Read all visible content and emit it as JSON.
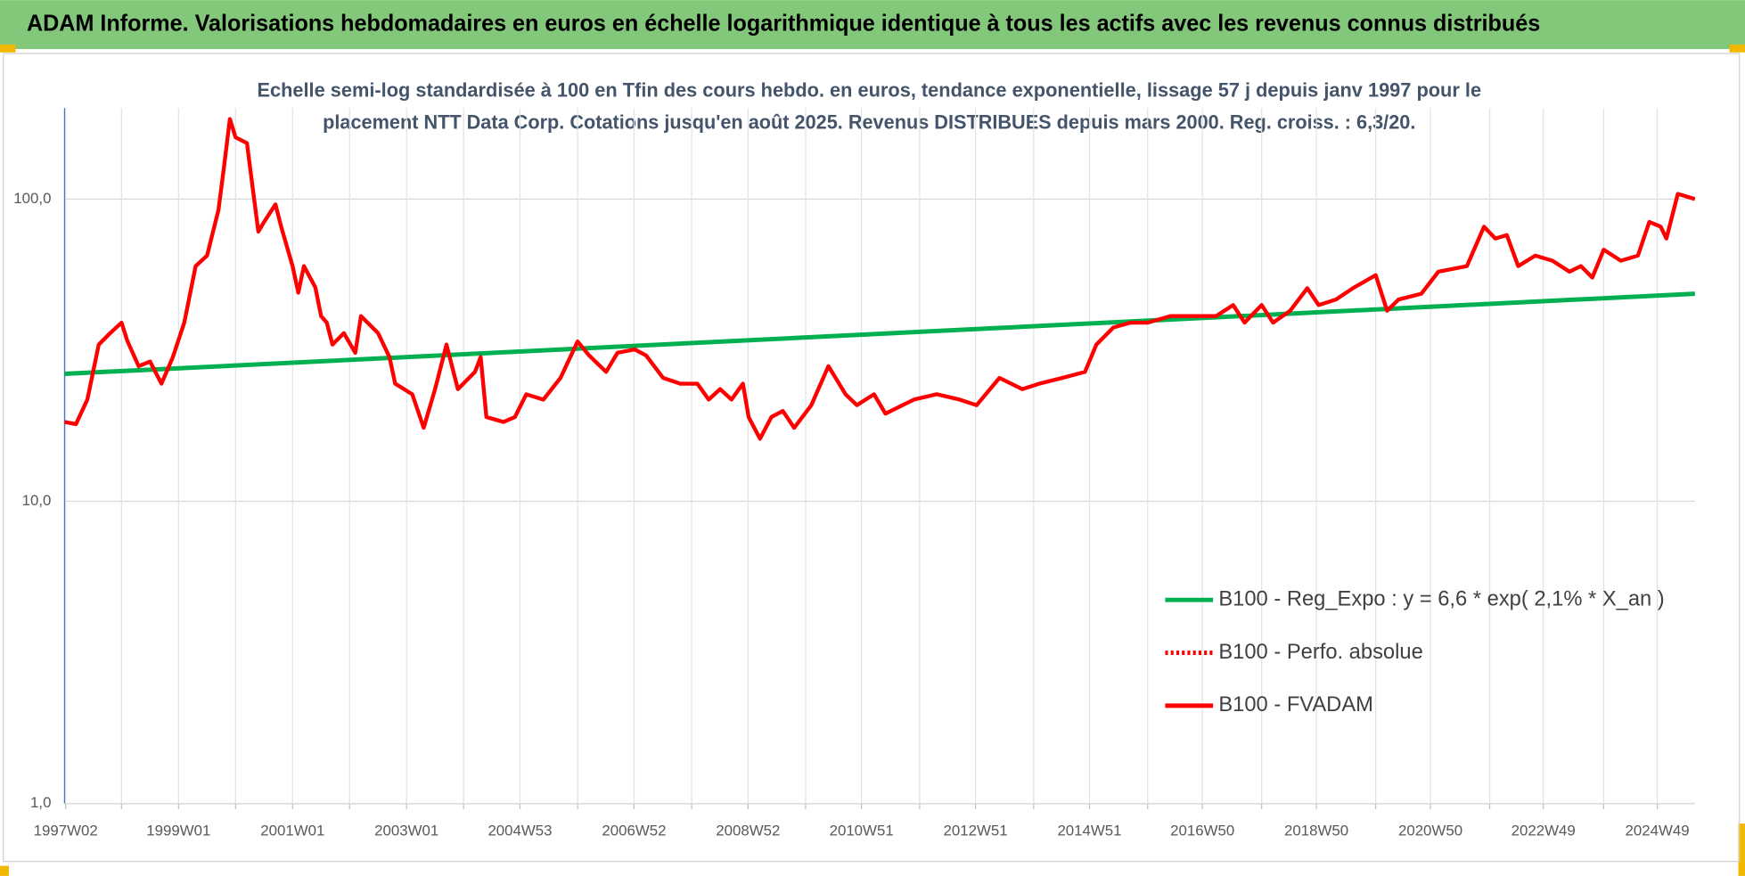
{
  "chart_data": {
    "type": "line",
    "title": "ADAM Informe. Valorisations hebdomadaires en euros en échelle logarithmique identique à tous les actifs avec les revenus connus distribués",
    "subtitle": [
      "Echelle semi-log standardisée à 100 en Tfin des cours hebdo. en euros, tendance exponentielle, lissage 57 j depuis janv 1997 pour le",
      "placement NTT Data Corp. Cotations jusqu'en août 2025. Revenus DISTRIBUES depuis mars 2000. Reg. croiss. : 6,3/20."
    ],
    "log_scale": true,
    "grid": true,
    "legend_position": "right",
    "xlim": [
      1997.0,
      2025.6
    ],
    "xticks": [
      {
        "value": 1997.02,
        "label": "1997W02"
      },
      {
        "value": 1998
      },
      {
        "value": 1999.0,
        "label": "1999W01"
      },
      {
        "value": 2000
      },
      {
        "value": 2001.0,
        "label": "2001W01"
      },
      {
        "value": 2002
      },
      {
        "value": 2003.0,
        "label": "2003W01"
      },
      {
        "value": 2004
      },
      {
        "value": 2004.99,
        "label": "2004W53"
      },
      {
        "value": 2006
      },
      {
        "value": 2006.99,
        "label": "2006W52"
      },
      {
        "value": 2008
      },
      {
        "value": 2008.99,
        "label": "2008W52"
      },
      {
        "value": 2010
      },
      {
        "value": 2010.98,
        "label": "2010W51"
      },
      {
        "value": 2012
      },
      {
        "value": 2012.98,
        "label": "2012W51"
      },
      {
        "value": 2014
      },
      {
        "value": 2014.98,
        "label": "2014W51"
      },
      {
        "value": 2016
      },
      {
        "value": 2016.96,
        "label": "2016W50"
      },
      {
        "value": 2018
      },
      {
        "value": 2018.96,
        "label": "2018W50"
      },
      {
        "value": 2020
      },
      {
        "value": 2020.96,
        "label": "2020W50"
      },
      {
        "value": 2022
      },
      {
        "value": 2022.94,
        "label": "2022W49"
      },
      {
        "value": 2024
      },
      {
        "value": 2024.94,
        "label": "2024W49"
      }
    ],
    "ylim": [
      1,
      200
    ],
    "yticks": [
      {
        "value": 1,
        "label": "1,0"
      },
      {
        "value": 10,
        "label": "10,0"
      },
      {
        "value": 100,
        "label": "100,0"
      }
    ],
    "series": [
      {
        "name": "B100 - Reg_Expo : y = 6,6 * exp( 2,1% *  X_an )",
        "color": "#00b050",
        "style": "solid",
        "x": [
          1997.0,
          2025.6
        ],
        "values": [
          26.4,
          48.6
        ]
      },
      {
        "name": "B100 - Perfo. absolue",
        "color": "#ff0000",
        "style": "dotted",
        "x": [],
        "values": []
      },
      {
        "name": "B100 - FVADAM",
        "color": "#ff0000",
        "style": "solid",
        "x": [
          1997.0,
          1997.2,
          1997.4,
          1997.6,
          1997.8,
          1998.0,
          1998.1,
          1998.3,
          1998.5,
          1998.7,
          1998.9,
          1999.1,
          1999.3,
          1999.5,
          1999.7,
          1999.8,
          1999.9,
          2000.0,
          2000.2,
          2000.3,
          2000.4,
          2000.5,
          2000.7,
          2000.8,
          2001.0,
          2001.1,
          2001.2,
          2001.4,
          2001.5,
          2001.6,
          2001.7,
          2001.9,
          2002.1,
          2002.2,
          2002.5,
          2002.7,
          2002.8,
          2003.1,
          2003.3,
          2003.5,
          2003.7,
          2003.9,
          2004.2,
          2004.3,
          2004.4,
          2004.7,
          2004.9,
          2005.1,
          2005.4,
          2005.7,
          2006.0,
          2006.2,
          2006.5,
          2006.7,
          2007.0,
          2007.2,
          2007.5,
          2007.8,
          2008.1,
          2008.3,
          2008.5,
          2008.7,
          2008.9,
          2009.0,
          2009.2,
          2009.4,
          2009.6,
          2009.8,
          2010.1,
          2010.4,
          2010.7,
          2010.9,
          2011.2,
          2011.4,
          2011.7,
          2011.9,
          2012.3,
          2012.7,
          2013.0,
          2013.4,
          2013.8,
          2014.1,
          2014.5,
          2014.9,
          2015.1,
          2015.4,
          2015.7,
          2016.0,
          2016.4,
          2016.8,
          2017.2,
          2017.5,
          2017.7,
          2018.0,
          2018.2,
          2018.5,
          2018.8,
          2019.0,
          2019.3,
          2019.6,
          2020.0,
          2020.2,
          2020.4,
          2020.8,
          2021.1,
          2021.6,
          2021.9,
          2022.1,
          2022.3,
          2022.5,
          2022.8,
          2023.1,
          2023.4,
          2023.6,
          2023.8,
          2024.0,
          2024.3,
          2024.6,
          2024.8,
          2025.0,
          2025.1,
          2025.3,
          2025.6
        ],
        "values": [
          18.3,
          18,
          21.7,
          33,
          36,
          39,
          34,
          28,
          29,
          24.5,
          30,
          39,
          60,
          65,
          92,
          129,
          184,
          160,
          153,
          109,
          78,
          84,
          96,
          81,
          60,
          49,
          60,
          51,
          41,
          39,
          33,
          36,
          31,
          41,
          36,
          30,
          24.5,
          22.6,
          17.5,
          23.5,
          33,
          23.5,
          26.8,
          30,
          19,
          18.3,
          19,
          22.6,
          21.7,
          25.6,
          33.8,
          30.4,
          26.8,
          31,
          31.8,
          30.4,
          25.6,
          24.5,
          24.5,
          21.7,
          23.5,
          21.7,
          24.5,
          19,
          16.1,
          19,
          19.9,
          17.5,
          20.8,
          28,
          22.6,
          20.8,
          22.6,
          19.5,
          20.8,
          21.7,
          22.6,
          21.7,
          20.8,
          25.6,
          23.5,
          24.5,
          25.6,
          26.8,
          33,
          37.6,
          39,
          39,
          41,
          41,
          41,
          44.6,
          39,
          44.6,
          39,
          42.7,
          50.7,
          44.6,
          46.5,
          50.7,
          56,
          42.7,
          46.5,
          48.6,
          57.5,
          60,
          81,
          74,
          76,
          60,
          65,
          62.5,
          57.5,
          60,
          55,
          68,
          62.5,
          65,
          84,
          81,
          74,
          104,
          100
        ]
      }
    ]
  }
}
